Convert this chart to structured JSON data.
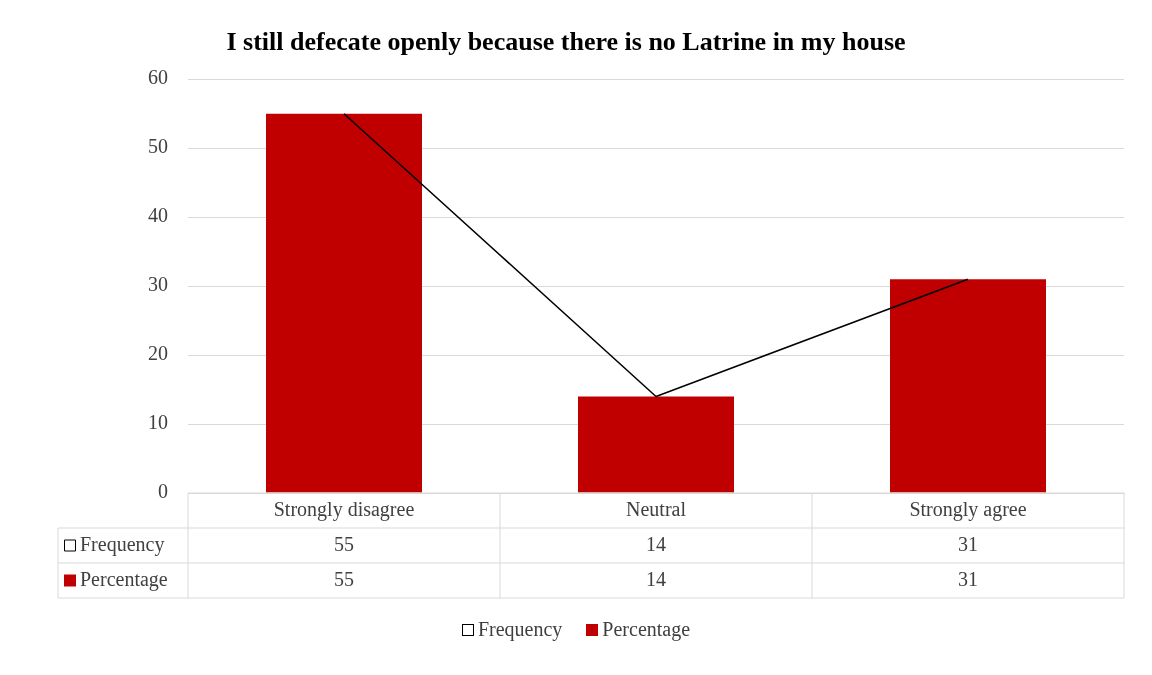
{
  "chart_data": {
    "type": "bar",
    "title": "I still defecate openly because there is no Latrine in my house",
    "categories": [
      "Strongly disagree",
      "Neutral",
      "Strongly agree"
    ],
    "series": [
      {
        "name": "Frequency",
        "type": "line",
        "color": "#000000",
        "values": [
          55,
          14,
          31
        ]
      },
      {
        "name": "Percentage",
        "color": "#c00000",
        "values": [
          55,
          14,
          31
        ]
      }
    ],
    "ylim": [
      0,
      60
    ],
    "yticks": [
      0,
      10,
      20,
      30,
      40,
      50,
      60
    ],
    "grid": "y",
    "legend": "bottom",
    "data_labels": true,
    "marker": "none"
  }
}
